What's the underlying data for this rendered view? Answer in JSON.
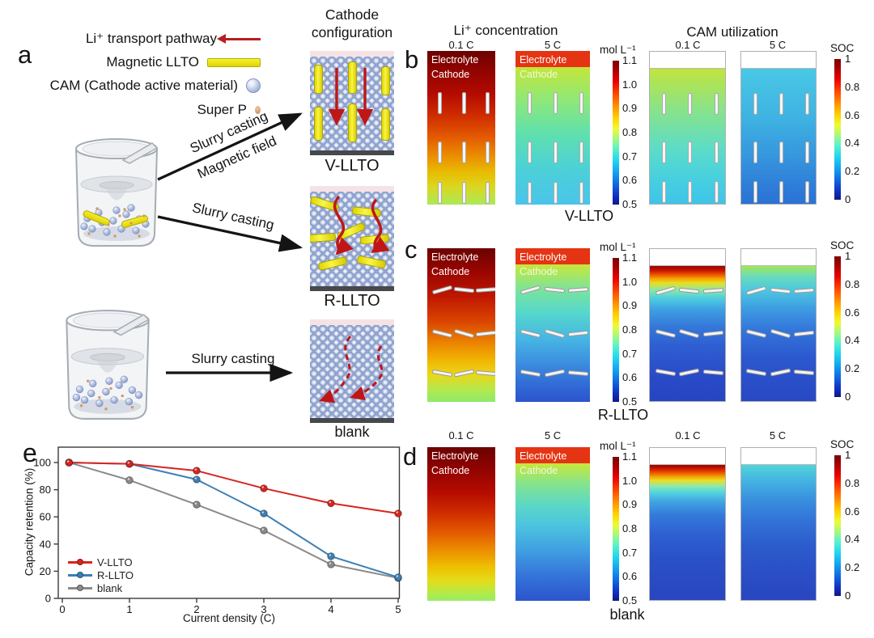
{
  "panel_a": {
    "letter": "a",
    "legend": {
      "li_pathway": "Li⁺ transport pathway",
      "magnetic_llto": "Magnetic LLTO",
      "cam": "CAM (Cathode active material)",
      "super_p": "Super P"
    },
    "process": {
      "arrow1_line1": "Slurry casting",
      "arrow1_line2": "Magnetic field",
      "arrow2": "Slurry casting",
      "arrow3": "Slurry casting"
    },
    "config_title_line1": "Cathode",
    "config_title_line2": "configuration",
    "configs": {
      "v": "V-LLTO",
      "r": "R-LLTO",
      "blank": "blank"
    }
  },
  "heatmaps": {
    "li_title": "Li⁺ concentration",
    "cam_title": "CAM utilization",
    "rate_low": "0.1 C",
    "rate_high": "5 C",
    "electrolyte_label": "Electrolyte",
    "cathode_label": "Cathode",
    "mol_unit": "mol L⁻¹",
    "soc_unit": "SOC",
    "mol_ticks": [
      "1.1",
      "1.0",
      "0.9",
      "0.8",
      "0.7",
      "0.6",
      "0.5"
    ],
    "soc_ticks": [
      "1",
      "0.8",
      "0.6",
      "0.4",
      "0.2",
      "0"
    ],
    "panel_b": {
      "letter": "b",
      "group": "V-LLTO"
    },
    "panel_c": {
      "letter": "c",
      "group": "R-LLTO"
    },
    "panel_d": {
      "letter": "d",
      "group": "blank"
    }
  },
  "chart_data": {
    "type": "line",
    "panel_letter": "e",
    "title": "",
    "xlabel": "Current density (C)",
    "ylabel": "Capacity retention (%)",
    "xlim": [
      0,
      5
    ],
    "ylim": [
      0,
      110
    ],
    "xticks": [
      0,
      1,
      2,
      3,
      4,
      5
    ],
    "yticks": [
      0,
      20,
      40,
      60,
      80,
      100
    ],
    "grid": false,
    "legend_position": "lower-left",
    "x": [
      0.1,
      1,
      2,
      3,
      4,
      5
    ],
    "series": [
      {
        "name": "V-LLTO",
        "color": "#d8251f",
        "values": [
          100,
          99,
          94,
          81,
          70,
          62.5
        ]
      },
      {
        "name": "R-LLTO",
        "color": "#3c80b4",
        "values": [
          100,
          99,
          87.5,
          62.5,
          31,
          15.5
        ]
      },
      {
        "name": "blank",
        "color": "#8a8a8a",
        "values": [
          100,
          87,
          69,
          50,
          25,
          15
        ]
      }
    ]
  }
}
